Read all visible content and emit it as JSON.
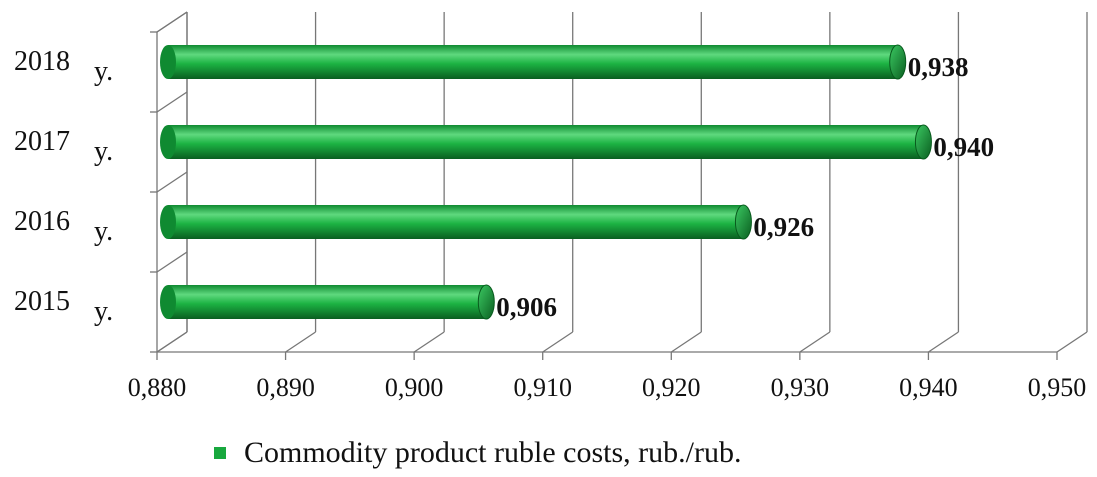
{
  "chart_data": {
    "type": "bar",
    "orientation": "horizontal",
    "categories": [
      {
        "year": "2015",
        "suffix": "y."
      },
      {
        "year": "2016",
        "suffix": "y."
      },
      {
        "year": "2017",
        "suffix": "y."
      },
      {
        "year": "2018",
        "suffix": "y."
      }
    ],
    "series": [
      {
        "name": "Commodity product ruble costs, rub./rub.",
        "values": [
          0.906,
          0.926,
          0.94,
          0.938
        ],
        "labels": [
          "0,906",
          "0,926",
          "0,940",
          "0,938"
        ]
      }
    ],
    "xlim": [
      0.88,
      0.95
    ],
    "xticks": [
      0.88,
      0.89,
      0.9,
      0.91,
      0.92,
      0.93,
      0.94,
      0.95
    ],
    "xtick_labels": [
      "0,880",
      "0,890",
      "0,900",
      "0,910",
      "0,920",
      "0,930",
      "0,940",
      "0,950"
    ],
    "grid": true,
    "legend_position": "bottom",
    "colors": {
      "bar": "#18a83e",
      "bar_dark": "#0c6e26",
      "bar_light": "#5fd97e",
      "grid": "#777777"
    }
  }
}
